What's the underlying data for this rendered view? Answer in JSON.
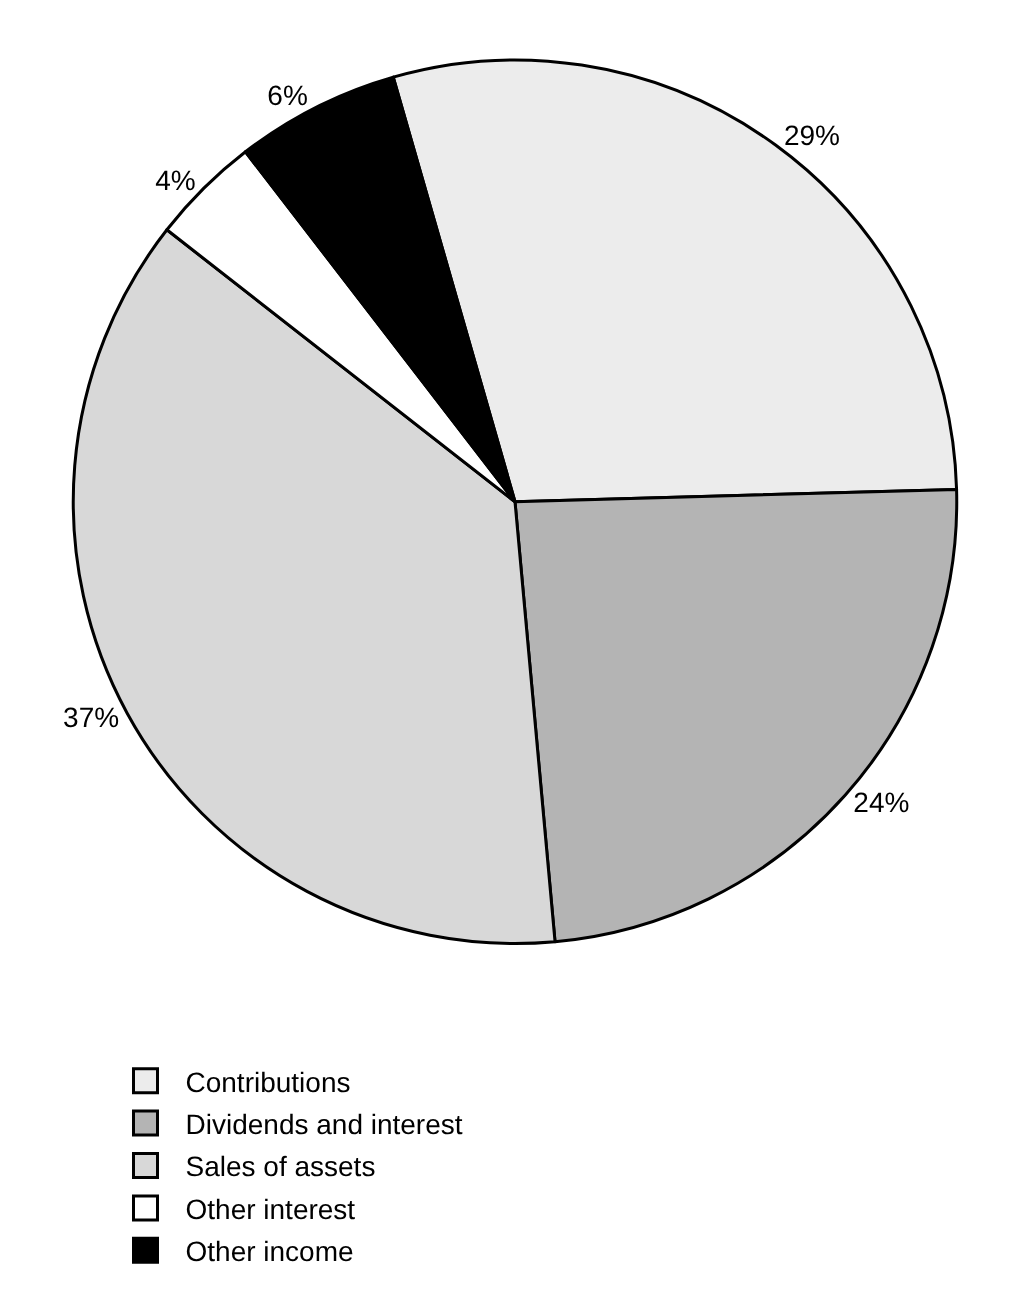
{
  "chart_data": {
    "type": "pie",
    "categories": [
      "Contributions",
      "Dividends and interest",
      "Sales of assets",
      "Other interest",
      "Other income"
    ],
    "values": [
      29,
      24,
      37,
      4,
      6
    ],
    "value_labels": [
      "29%",
      "24%",
      "37%",
      "4%",
      "6%"
    ],
    "colors": [
      "#ececec",
      "#b4b4b4",
      "#d8d8d8",
      "#ffffff",
      "#000000"
    ],
    "legend": "bottom"
  }
}
